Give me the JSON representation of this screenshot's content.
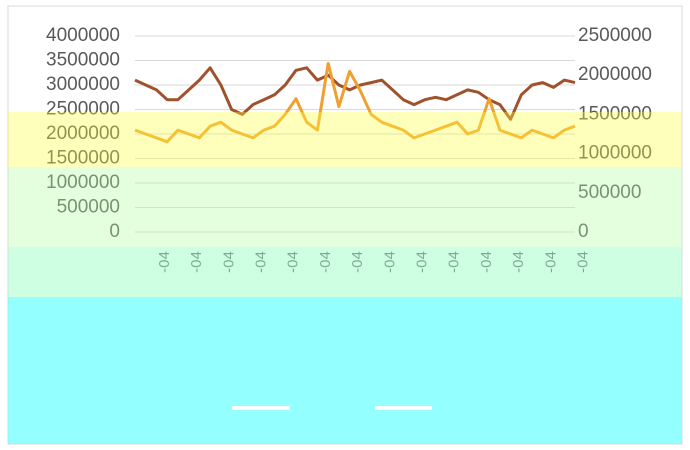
{
  "chart_data": {
    "type": "line",
    "categories": [
      "-04",
      null,
      null,
      "-04",
      null,
      null,
      "-04",
      null,
      null,
      "-04",
      null,
      null,
      "-04",
      null,
      null,
      "-04",
      null,
      null,
      "-04",
      null,
      null,
      "-04",
      null,
      null,
      "-04",
      null,
      null,
      "-04",
      null,
      null,
      "-04",
      null,
      null,
      "-04",
      null,
      null,
      "-04",
      null,
      null,
      "-04",
      null,
      null
    ],
    "series": [
      {
        "color": "#a0522d",
        "values": [
          3100000,
          3000000,
          2900000,
          2700000,
          2700000,
          2900000,
          3100000,
          3350000,
          3000000,
          2500000,
          2400000,
          2600000,
          2700000,
          2800000,
          3000000,
          3300000,
          3350000,
          3100000,
          3200000,
          3000000,
          2900000,
          3000000,
          3050000,
          3100000,
          2900000,
          2700000,
          2600000,
          2700000,
          2750000,
          2700000,
          2800000,
          2900000,
          2850000,
          2700000,
          2600000,
          2300000,
          2800000,
          3000000,
          3050000,
          2950000,
          3100000,
          3050000
        ]
      },
      {
        "color": "#f0a030",
        "axis": "y2",
        "values": [
          1300000,
          1250000,
          1200000,
          1150000,
          1300000,
          1250000,
          1200000,
          1350000,
          1400000,
          1300000,
          1250000,
          1200000,
          1300000,
          1350000,
          1500000,
          1700000,
          1400000,
          1300000,
          2150000,
          1600000,
          2050000,
          1800000,
          1500000,
          1400000,
          1350000,
          1300000,
          1200000,
          1250000,
          1300000,
          1350000,
          1400000,
          1250000,
          1300000,
          1700000,
          1300000,
          1250000,
          1200000,
          1300000,
          1250000,
          1200000,
          1300000,
          1350000
        ]
      }
    ],
    "ylim": [
      0,
      4000000
    ],
    "yticks": [
      0,
      500000,
      1000000,
      1500000,
      2000000,
      2500000,
      3000000,
      3500000,
      4000000
    ],
    "y2lim": [
      0,
      2500000
    ],
    "y2ticks": [
      0,
      500000,
      1000000,
      1500000,
      2000000,
      2500000
    ],
    "grid": true
  }
}
